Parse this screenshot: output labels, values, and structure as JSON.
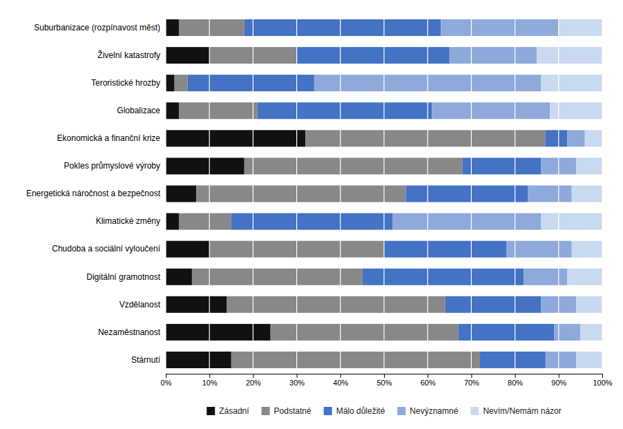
{
  "chart_data": {
    "type": "bar",
    "orientation": "horizontal",
    "stacked": true,
    "categories": [
      "Suburbanizace (rozpínavost měst)",
      "Živelní katastrofy",
      "Teroristické hrozby",
      "Globalizace",
      "Ekonomická a finanční krize",
      "Pokles průmyslové výroby",
      "Energetická náročnost a bezpečnost",
      "Klimatické změny",
      "Chudoba a sociální vyloučení",
      "Digitální gramotnost",
      "Vzdělanost",
      "Nezaměstnanost",
      "Stárnutí"
    ],
    "series": [
      {
        "name": "Zásadní",
        "color": "#111111",
        "values": [
          3,
          10,
          2,
          3,
          32,
          18,
          7,
          3,
          10,
          6,
          14,
          24,
          15
        ]
      },
      {
        "name": "Podstatné",
        "color": "#888888",
        "values": [
          15,
          20,
          3,
          18,
          55,
          50,
          48,
          12,
          40,
          39,
          50,
          43,
          57
        ]
      },
      {
        "name": "Málo důležité",
        "color": "#4472c4",
        "values": [
          45,
          35,
          29,
          40,
          5,
          18,
          28,
          37,
          28,
          37,
          22,
          22,
          15
        ]
      },
      {
        "name": "Nevýznamné",
        "color": "#8eaadb",
        "values": [
          27,
          20,
          52,
          27,
          4,
          8,
          10,
          34,
          15,
          10,
          8,
          6,
          7
        ]
      },
      {
        "name": "Nevím/Nemám názor",
        "color": "#c9d9ef",
        "values": [
          10,
          15,
          14,
          12,
          4,
          6,
          7,
          14,
          7,
          8,
          6,
          5,
          6
        ]
      }
    ],
    "xlim": [
      0,
      100
    ],
    "xticks": [
      {
        "value": 0,
        "label": "0%"
      },
      {
        "value": 10,
        "label": "10%"
      },
      {
        "value": 20,
        "label": "20%"
      },
      {
        "value": 30,
        "label": "30%"
      },
      {
        "value": 40,
        "label": "40%"
      },
      {
        "value": 50,
        "label": "50%"
      },
      {
        "value": 60,
        "label": "60%"
      },
      {
        "value": 70,
        "label": "70%"
      },
      {
        "value": 80,
        "label": "80%"
      },
      {
        "value": 90,
        "label": "90%"
      },
      {
        "value": 100,
        "label": "100%"
      }
    ],
    "grid": true,
    "legend": "bottom"
  }
}
